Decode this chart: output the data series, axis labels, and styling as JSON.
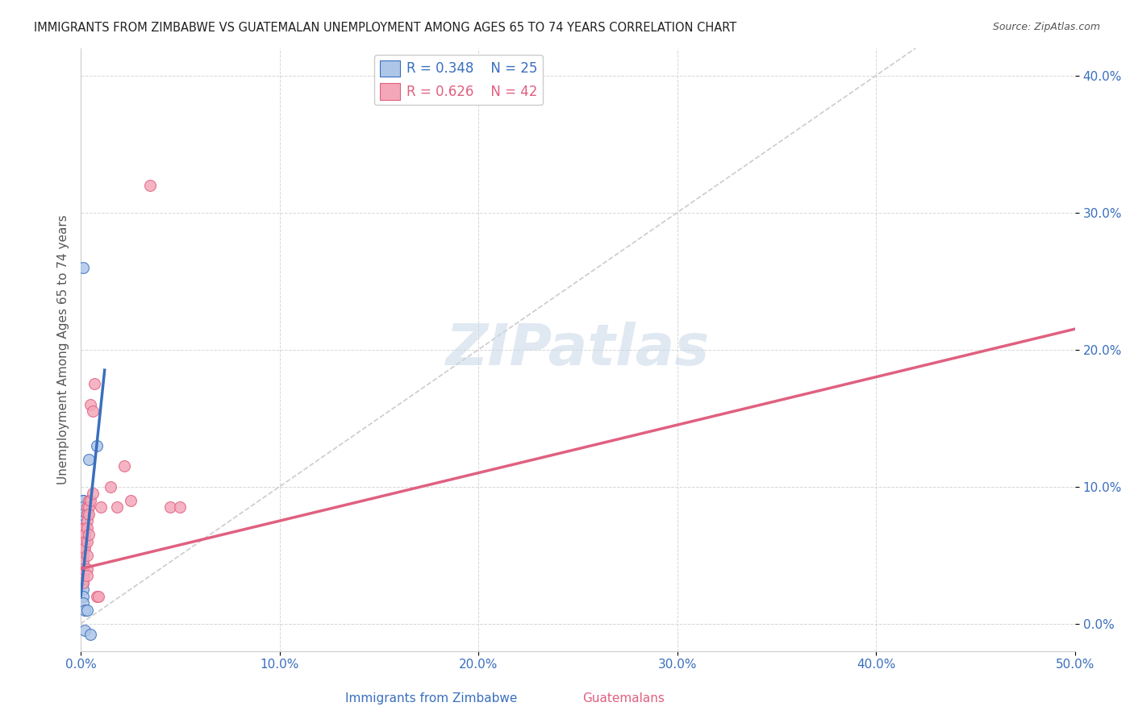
{
  "title": "IMMIGRANTS FROM ZIMBABWE VS GUATEMALAN UNEMPLOYMENT AMONG AGES 65 TO 74 YEARS CORRELATION CHART",
  "source": "Source: ZipAtlas.com",
  "xlabel": "",
  "ylabel": "Unemployment Among Ages 65 to 74 years",
  "xlim": [
    0.0,
    0.5
  ],
  "ylim": [
    -0.02,
    0.42
  ],
  "xticks": [
    0.0,
    0.1,
    0.2,
    0.3,
    0.4,
    0.5
  ],
  "xticklabels": [
    "0.0%",
    "10.0%",
    "20.0%",
    "30.0%",
    "40.0%",
    "50.0%"
  ],
  "yticks": [
    0.0,
    0.1,
    0.2,
    0.3,
    0.4
  ],
  "yticklabels": [
    "0.0%",
    "10.0%",
    "20.0%",
    "30.0%",
    "40.0%"
  ],
  "legend_r_blue": "R = 0.348",
  "legend_n_blue": "N = 25",
  "legend_r_pink": "R = 0.626",
  "legend_n_pink": "N = 42",
  "blue_scatter": [
    [
      0.001,
      0.26
    ],
    [
      0.001,
      0.09
    ],
    [
      0.001,
      0.09
    ],
    [
      0.001,
      0.085
    ],
    [
      0.001,
      0.08
    ],
    [
      0.001,
      0.075
    ],
    [
      0.001,
      0.072
    ],
    [
      0.001,
      0.065
    ],
    [
      0.001,
      0.06
    ],
    [
      0.001,
      0.055
    ],
    [
      0.001,
      0.05
    ],
    [
      0.001,
      0.045
    ],
    [
      0.001,
      0.04
    ],
    [
      0.001,
      0.035
    ],
    [
      0.001,
      0.03
    ],
    [
      0.001,
      0.025
    ],
    [
      0.001,
      0.02
    ],
    [
      0.001,
      0.015
    ],
    [
      0.002,
      0.01
    ],
    [
      0.002,
      -0.005
    ],
    [
      0.003,
      0.08
    ],
    [
      0.003,
      0.01
    ],
    [
      0.004,
      0.12
    ],
    [
      0.005,
      -0.008
    ],
    [
      0.008,
      0.13
    ]
  ],
  "pink_scatter": [
    [
      0.001,
      0.07
    ],
    [
      0.001,
      0.065
    ],
    [
      0.001,
      0.06
    ],
    [
      0.001,
      0.055
    ],
    [
      0.001,
      0.05
    ],
    [
      0.001,
      0.045
    ],
    [
      0.001,
      0.04
    ],
    [
      0.001,
      0.038
    ],
    [
      0.001,
      0.036
    ],
    [
      0.001,
      0.033
    ],
    [
      0.001,
      0.03
    ],
    [
      0.002,
      0.07
    ],
    [
      0.002,
      0.065
    ],
    [
      0.002,
      0.06
    ],
    [
      0.002,
      0.055
    ],
    [
      0.003,
      0.085
    ],
    [
      0.003,
      0.08
    ],
    [
      0.003,
      0.075
    ],
    [
      0.003,
      0.07
    ],
    [
      0.003,
      0.06
    ],
    [
      0.003,
      0.05
    ],
    [
      0.003,
      0.04
    ],
    [
      0.003,
      0.035
    ],
    [
      0.004,
      0.09
    ],
    [
      0.004,
      0.085
    ],
    [
      0.004,
      0.08
    ],
    [
      0.004,
      0.065
    ],
    [
      0.005,
      0.16
    ],
    [
      0.005,
      0.09
    ],
    [
      0.006,
      0.155
    ],
    [
      0.006,
      0.095
    ],
    [
      0.007,
      0.175
    ],
    [
      0.008,
      0.02
    ],
    [
      0.009,
      0.02
    ],
    [
      0.01,
      0.085
    ],
    [
      0.015,
      0.1
    ],
    [
      0.018,
      0.085
    ],
    [
      0.022,
      0.115
    ],
    [
      0.025,
      0.09
    ],
    [
      0.035,
      0.32
    ],
    [
      0.045,
      0.085
    ],
    [
      0.05,
      0.085
    ]
  ],
  "blue_line_x": [
    0.0,
    0.012
  ],
  "blue_line_y": [
    0.02,
    0.185
  ],
  "pink_line_x": [
    0.0,
    0.5
  ],
  "pink_line_y": [
    0.04,
    0.215
  ],
  "blue_color": "#aec6e8",
  "pink_color": "#f4a7b9",
  "blue_line_color": "#3a6fbf",
  "pink_line_color": "#e06080",
  "dash_line_color": "#cccccc",
  "watermark": "ZIPatlas",
  "marker_size": 100,
  "background_color": "#ffffff"
}
